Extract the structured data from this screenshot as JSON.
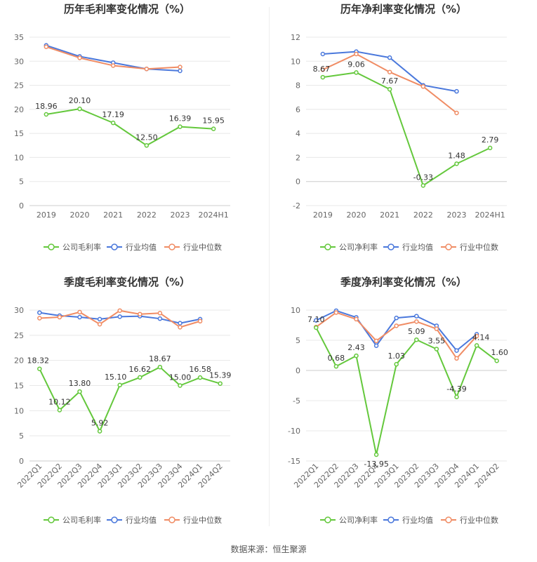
{
  "source": "数据来源：恒生聚源",
  "colors": {
    "company": "#64c83c",
    "avg": "#4a78dc",
    "median": "#f08c64"
  },
  "chart_data": [
    {
      "type": "line",
      "title": "历年毛利率变化情况（%）",
      "categories": [
        "2019",
        "2020",
        "2021",
        "2022",
        "2023",
        "2024H1"
      ],
      "ylim": [
        0,
        35
      ],
      "yticks": [
        0,
        5,
        10,
        15,
        20,
        25,
        30,
        35
      ],
      "legend_placement": "bottom",
      "series": [
        {
          "name": "公司毛利率",
          "key": "company",
          "values": [
            18.96,
            20.1,
            17.19,
            12.5,
            16.39,
            15.95
          ],
          "labels": [
            "18.96",
            "20.10",
            "17.19",
            "12.50",
            "16.39",
            "15.95"
          ]
        },
        {
          "name": "行业均值",
          "key": "avg",
          "values": [
            33.3,
            31.0,
            29.7,
            28.4,
            28.0,
            null
          ]
        },
        {
          "name": "行业中位数",
          "key": "median",
          "values": [
            33.0,
            30.7,
            29.1,
            28.4,
            28.8,
            null
          ]
        }
      ]
    },
    {
      "type": "line",
      "title": "历年净利率变化情况（%）",
      "categories": [
        "2019",
        "2020",
        "2021",
        "2022",
        "2023",
        "2024H1"
      ],
      "ylim": [
        -2,
        12
      ],
      "yticks": [
        -2,
        0,
        2,
        4,
        6,
        8,
        10,
        12
      ],
      "legend_placement": "bottom",
      "series": [
        {
          "name": "公司净利率",
          "key": "company",
          "values": [
            8.67,
            9.06,
            7.67,
            -0.33,
            1.48,
            2.79
          ],
          "labels": [
            "8.67",
            "9.06",
            "7.67",
            "-0.33",
            "1.48",
            "2.79"
          ]
        },
        {
          "name": "行业均值",
          "key": "avg",
          "values": [
            10.6,
            10.8,
            10.3,
            8.0,
            7.5,
            null
          ]
        },
        {
          "name": "行业中位数",
          "key": "median",
          "values": [
            9.3,
            10.6,
            9.1,
            7.9,
            5.7,
            null
          ]
        }
      ]
    },
    {
      "type": "line",
      "title": "季度毛利率变化情况（%）",
      "categories": [
        "2022Q1",
        "2022Q2",
        "2022Q3",
        "2022Q4",
        "2023Q1",
        "2023Q2",
        "2023Q3",
        "2023Q4",
        "2024Q1",
        "2024Q2"
      ],
      "ylim": [
        0,
        30
      ],
      "yticks": [
        0,
        5,
        10,
        15,
        20,
        25,
        30
      ],
      "legend_placement": "bottom",
      "series": [
        {
          "name": "公司毛利率",
          "key": "company",
          "values": [
            18.32,
            10.12,
            13.8,
            5.92,
            15.1,
            16.62,
            18.67,
            15.0,
            16.58,
            15.39
          ],
          "labels": [
            "18.32",
            "10.12",
            "13.80",
            "5.92",
            "15.10",
            "16.62",
            "18.67",
            "15.00",
            "16.58",
            "15.39"
          ]
        },
        {
          "name": "行业均值",
          "key": "avg",
          "values": [
            29.5,
            28.9,
            28.6,
            28.2,
            28.7,
            28.8,
            28.3,
            27.4,
            28.2,
            null
          ]
        },
        {
          "name": "行业中位数",
          "key": "median",
          "values": [
            28.4,
            28.6,
            29.6,
            27.2,
            29.9,
            29.2,
            29.4,
            26.6,
            27.8,
            null
          ]
        }
      ]
    },
    {
      "type": "line",
      "title": "季度净利率变化情况（%）",
      "categories": [
        "2022Q1",
        "2022Q2",
        "2022Q3",
        "2022Q4",
        "2023Q1",
        "2023Q2",
        "2023Q3",
        "2023Q4",
        "2024Q1",
        "2024Q2"
      ],
      "ylim": [
        -15,
        10
      ],
      "yticks": [
        -15,
        -10,
        -5,
        0,
        5,
        10
      ],
      "legend_placement": "bottom",
      "series": [
        {
          "name": "公司净利率",
          "key": "company",
          "values": [
            7.1,
            0.68,
            2.43,
            -13.95,
            1.03,
            5.09,
            3.55,
            -4.39,
            4.14,
            1.6
          ],
          "labels": [
            "7.10",
            "0.68",
            "2.43",
            "-13.95",
            "1.03",
            "5.09",
            "3.55",
            "-4.39",
            "4.14",
            "1.60"
          ]
        },
        {
          "name": "行业均值",
          "key": "avg",
          "values": [
            8.3,
            9.9,
            8.8,
            4.1,
            8.7,
            9.0,
            7.4,
            3.3,
            6.0,
            null
          ]
        },
        {
          "name": "行业中位数",
          "key": "median",
          "values": [
            7.2,
            9.6,
            8.5,
            4.9,
            7.4,
            8.1,
            6.9,
            2.0,
            5.7,
            null
          ]
        }
      ]
    }
  ]
}
